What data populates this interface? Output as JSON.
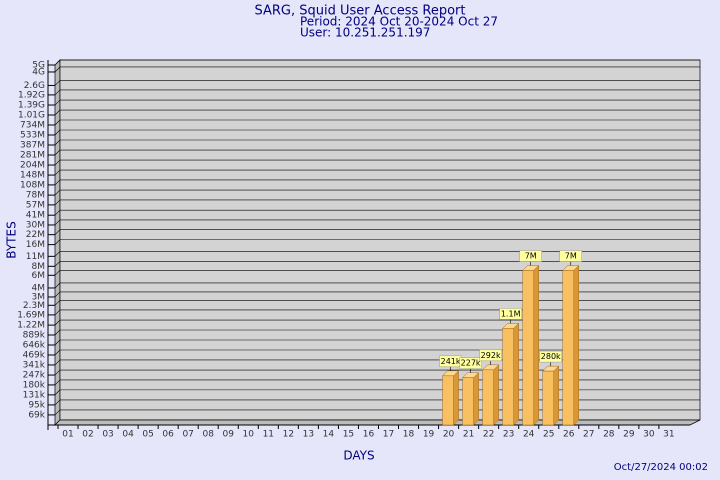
{
  "chart_data": {
    "type": "bar",
    "title": "SARG, Squid User Access Report",
    "subtitle": "Period: 2024 Oct 20-2024 Oct 27",
    "user": "User: 10.251.251.197",
    "x_label": "DAYS",
    "y_label": "BYTES",
    "footer": "Oct/27/2024 00:02",
    "log_scale": true,
    "grid": true,
    "color": "#f8c060",
    "categories": [
      "01",
      "02",
      "03",
      "04",
      "05",
      "06",
      "07",
      "08",
      "09",
      "10",
      "11",
      "12",
      "13",
      "14",
      "15",
      "16",
      "17",
      "18",
      "19",
      "20",
      "21",
      "22",
      "23",
      "24",
      "25",
      "26",
      "27",
      "28",
      "29",
      "30",
      "31"
    ],
    "values": [
      null,
      null,
      null,
      null,
      null,
      null,
      null,
      null,
      null,
      null,
      null,
      null,
      null,
      null,
      null,
      null,
      null,
      null,
      null,
      241000,
      227000,
      292000,
      1100000,
      7000000,
      280000,
      7000000,
      null,
      null,
      null,
      null,
      null
    ],
    "value_labels": [
      null,
      null,
      null,
      null,
      null,
      null,
      null,
      null,
      null,
      null,
      null,
      null,
      null,
      null,
      null,
      null,
      null,
      null,
      null,
      "241k",
      "227k",
      "292k",
      "1.1M",
      "7M",
      "280k",
      "7M",
      null,
      null,
      null,
      null,
      null
    ],
    "ylim": [
      50000,
      5000000000
    ],
    "yticks": [
      {
        "value": 69000,
        "label": "69k"
      },
      {
        "value": 95000,
        "label": "95k"
      },
      {
        "value": 131000,
        "label": "131k"
      },
      {
        "value": 180000,
        "label": "180k"
      },
      {
        "value": 247000,
        "label": "247k"
      },
      {
        "value": 341000,
        "label": "341k"
      },
      {
        "value": 469000,
        "label": "469k"
      },
      {
        "value": 646000,
        "label": "646k"
      },
      {
        "value": 889000,
        "label": "889k"
      },
      {
        "value": 1220000,
        "label": "1.22M"
      },
      {
        "value": 1690000,
        "label": "1.69M"
      },
      {
        "value": 2300000,
        "label": "2.3M"
      },
      {
        "value": 3000000,
        "label": "3M"
      },
      {
        "value": 4000000,
        "label": "4M"
      },
      {
        "value": 6000000,
        "label": "6M"
      },
      {
        "value": 8000000,
        "label": "8M"
      },
      {
        "value": 11000000,
        "label": "11M"
      },
      {
        "value": 16000000,
        "label": "16M"
      },
      {
        "value": 22000000,
        "label": "22M"
      },
      {
        "value": 30000000,
        "label": "30M"
      },
      {
        "value": 41000000,
        "label": "41M"
      },
      {
        "value": 57000000,
        "label": "57M"
      },
      {
        "value": 78000000,
        "label": "78M"
      },
      {
        "value": 108000000,
        "label": "108M"
      },
      {
        "value": 148000000,
        "label": "148M"
      },
      {
        "value": 204000000,
        "label": "204M"
      },
      {
        "value": 281000000,
        "label": "281M"
      },
      {
        "value": 387000000,
        "label": "387M"
      },
      {
        "value": 533000000,
        "label": "533M"
      },
      {
        "value": 734000000,
        "label": "734M"
      },
      {
        "value": 1010000000,
        "label": "1.01G"
      },
      {
        "value": 1390000000,
        "label": "1.39G"
      },
      {
        "value": 1920000000,
        "label": "1.92G"
      },
      {
        "value": 2600000000,
        "label": "2.6G"
      },
      {
        "value": 4000000000,
        "label": "4G"
      },
      {
        "value": 5000000000,
        "label": "5G"
      }
    ]
  }
}
